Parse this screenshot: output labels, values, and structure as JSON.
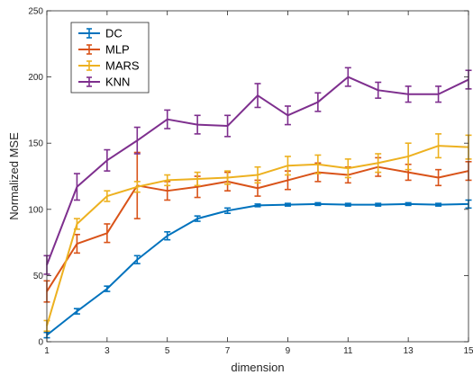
{
  "chart_data": {
    "type": "line",
    "title": "",
    "xlabel": "dimension",
    "ylabel": "Normalized MSE",
    "xlim": [
      1,
      15
    ],
    "ylim": [
      0,
      250
    ],
    "xticks": [
      1,
      3,
      5,
      7,
      9,
      11,
      13,
      15
    ],
    "yticks": [
      0,
      50,
      100,
      150,
      200,
      250
    ],
    "grid": false,
    "legend_position": "top-left",
    "x": [
      1,
      2,
      3,
      4,
      5,
      6,
      7,
      8,
      9,
      10,
      11,
      12,
      13,
      14,
      15
    ],
    "series": [
      {
        "name": "DC",
        "color": "#0072BD",
        "values": [
          5,
          23,
          40,
          62,
          80,
          93,
          99,
          103,
          103.5,
          104,
          103.5,
          103.5,
          104,
          103.5,
          104
        ],
        "errors": [
          2,
          2,
          2,
          3,
          3,
          2,
          2,
          1,
          1,
          1,
          1,
          1,
          1,
          1,
          3
        ]
      },
      {
        "name": "MLP",
        "color": "#D95319",
        "values": [
          38,
          74,
          82,
          118,
          114,
          117,
          121,
          116,
          122,
          128,
          126,
          132,
          128,
          124,
          129
        ],
        "errors": [
          8,
          7,
          7,
          25,
          7,
          8,
          7,
          6,
          7,
          7,
          6,
          7,
          6,
          6,
          7
        ]
      },
      {
        "name": "MARS",
        "color": "#EDB120",
        "values": [
          12,
          89,
          110,
          117,
          122,
          123,
          124,
          126,
          133,
          134,
          131,
          135,
          140,
          148,
          147
        ],
        "errors": [
          4,
          4,
          4,
          4,
          4,
          5,
          5,
          6,
          7,
          7,
          7,
          7,
          10,
          9,
          9
        ]
      },
      {
        "name": "KNN",
        "color": "#7E2F8E",
        "values": [
          58,
          117,
          137,
          152,
          168,
          164,
          163,
          186,
          171,
          181,
          200,
          190,
          187,
          187,
          198
        ],
        "errors": [
          7,
          10,
          8,
          10,
          7,
          7,
          8,
          9,
          7,
          7,
          7,
          6,
          6,
          6,
          7
        ]
      }
    ]
  }
}
